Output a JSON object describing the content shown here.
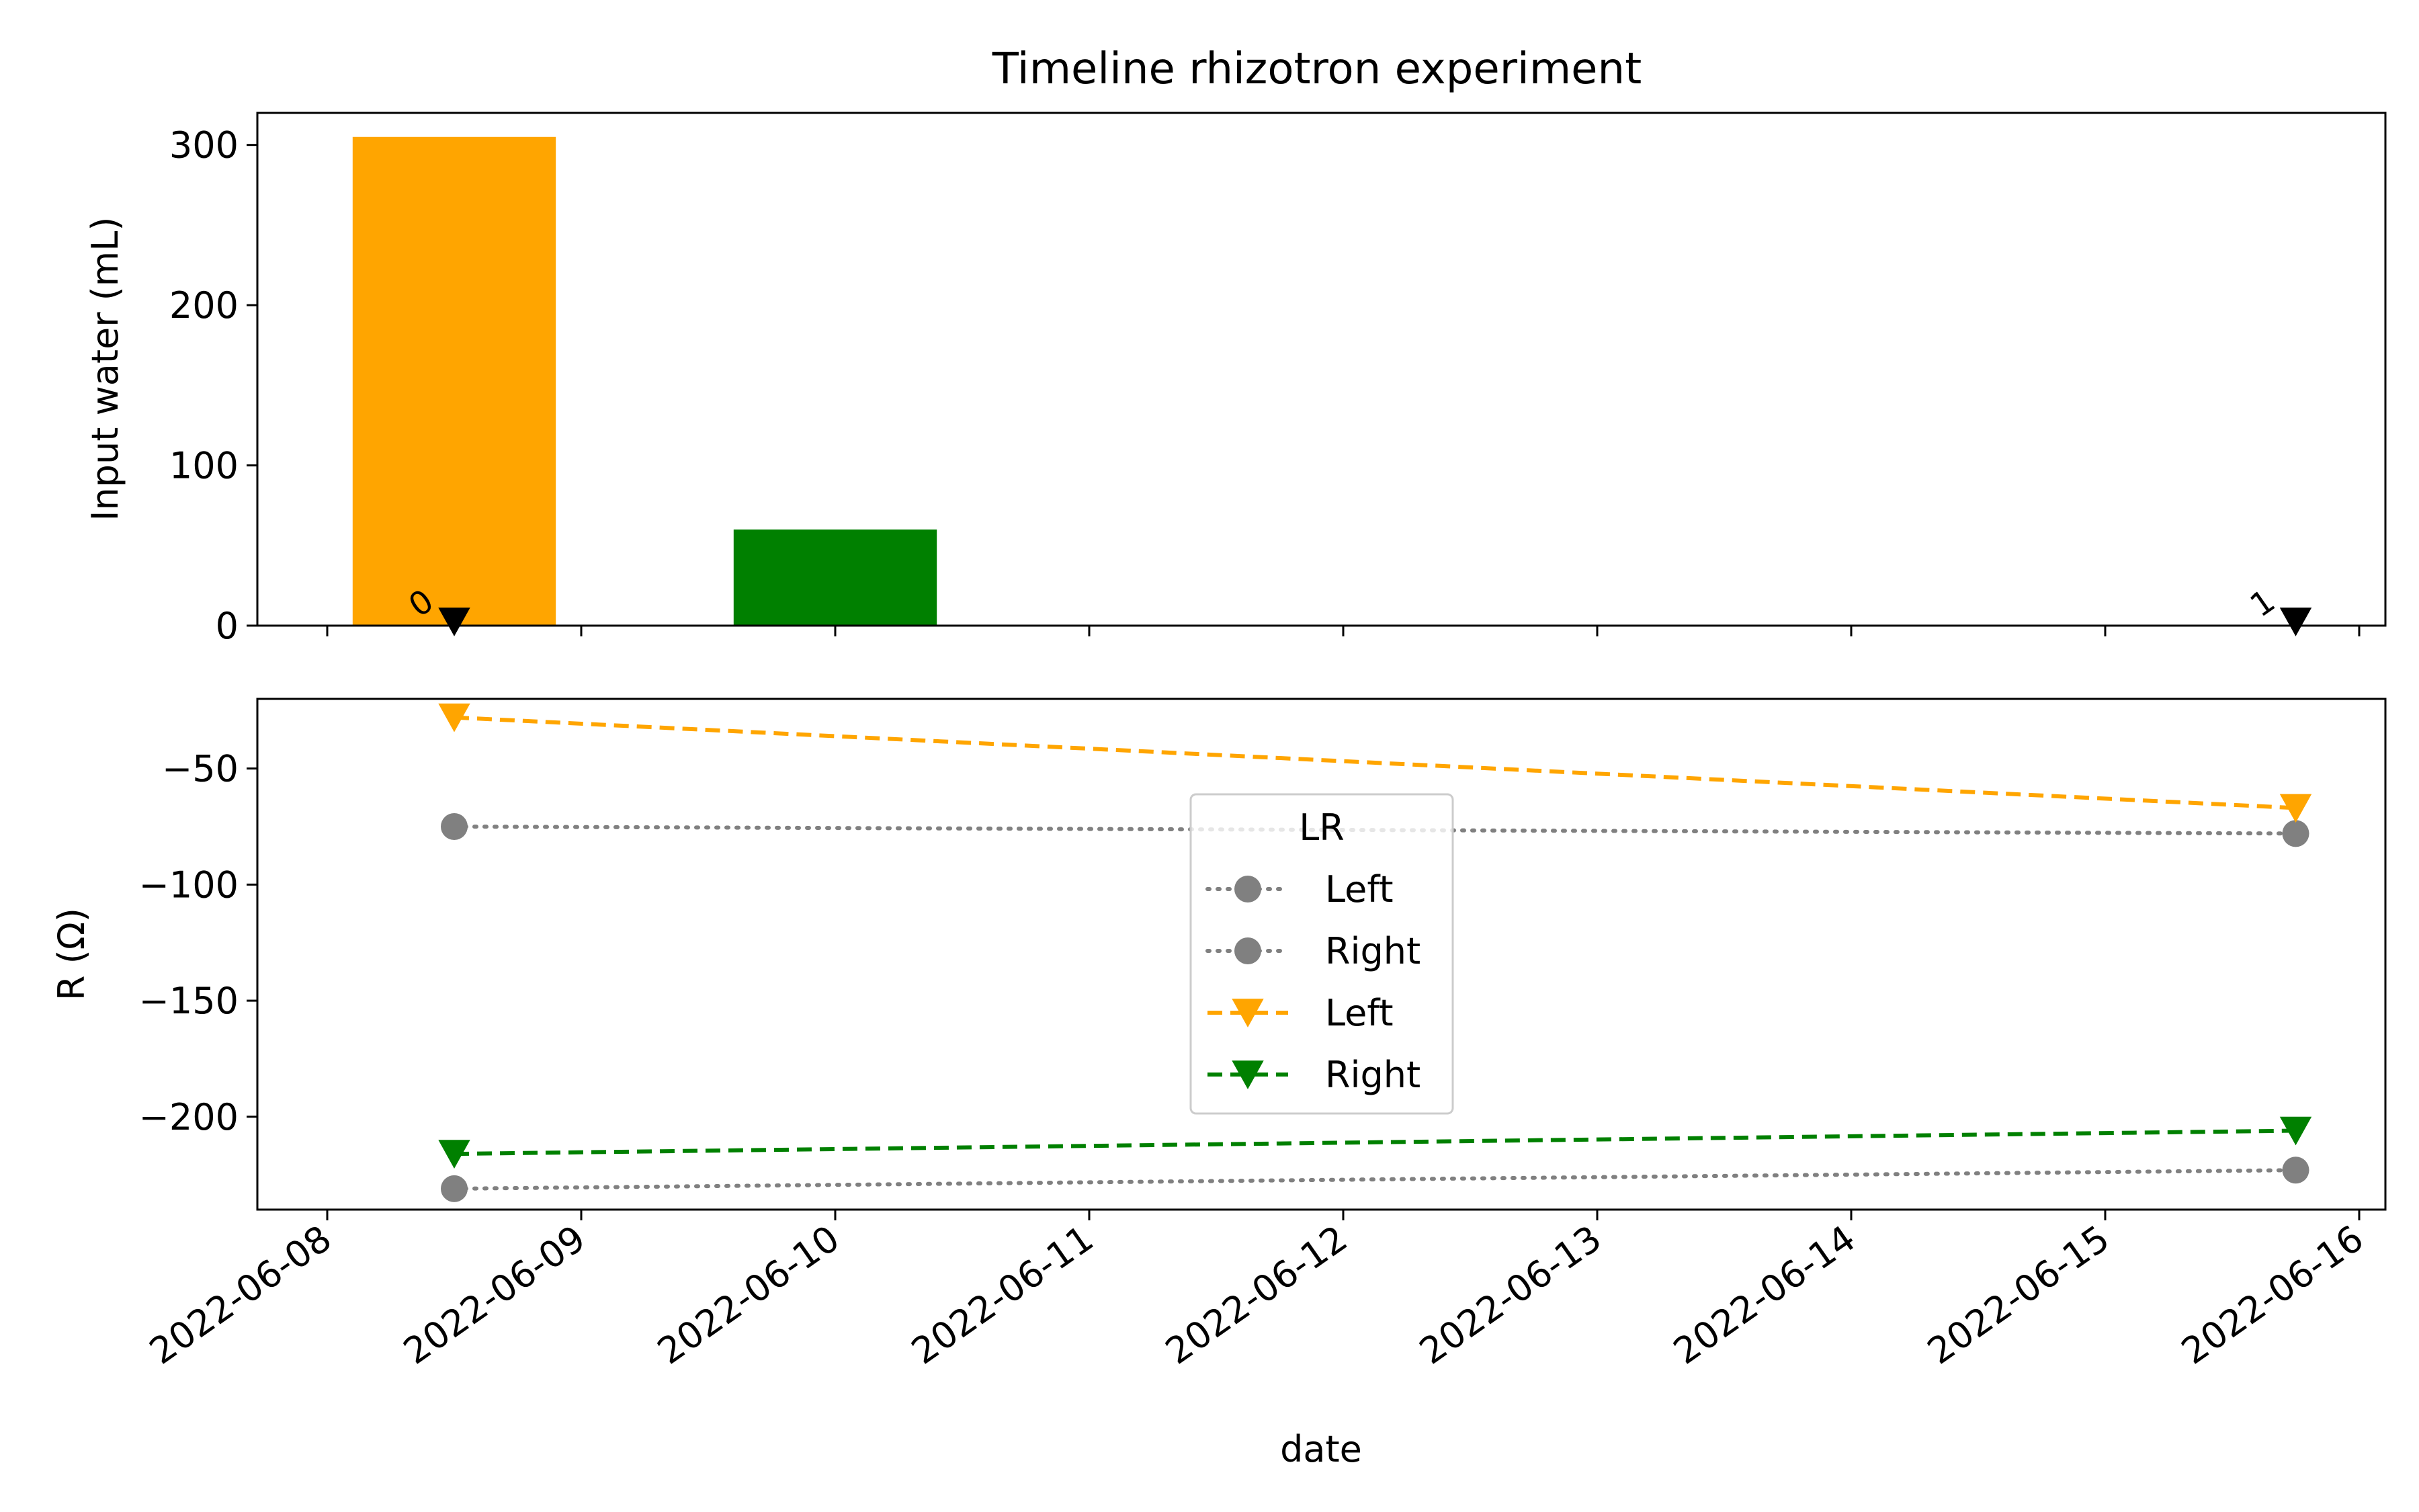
{
  "chart_data": [
    {
      "type": "bar",
      "title": "Timeline rhizotron experiment",
      "ylabel": "Input water (mL)",
      "xlabel": "",
      "xlim": [
        "2022-06-08",
        "2022-06-16"
      ],
      "ylim": [
        0,
        320
      ],
      "yticks": [
        0,
        100,
        200,
        300
      ],
      "grid": false,
      "series": [
        {
          "date": "2022-06-08T12:00",
          "value": 305,
          "color": "#FFA500"
        },
        {
          "date": "2022-06-10T00:00",
          "value": 60,
          "color": "#008000"
        }
      ],
      "annotations": [
        {
          "label": "0",
          "date": "2022-06-08T12:00",
          "y": 0,
          "marker": "triangle-down",
          "color": "#000000"
        },
        {
          "label": "1",
          "date": "2022-06-15T18:00",
          "y": 0,
          "marker": "triangle-down",
          "color": "#000000"
        }
      ]
    },
    {
      "type": "line",
      "xlabel": "date",
      "ylabel": "R (Ω)",
      "xlim": [
        "2022-06-08",
        "2022-06-16"
      ],
      "ylim": [
        -240,
        -20
      ],
      "yticks": [
        -50,
        -100,
        -150,
        -200
      ],
      "ytick_labels": [
        "−50",
        "−100",
        "−150",
        "−200"
      ],
      "xticks": [
        "2022-06-08",
        "2022-06-09",
        "2022-06-10",
        "2022-06-11",
        "2022-06-12",
        "2022-06-13",
        "2022-06-14",
        "2022-06-15",
        "2022-06-16"
      ],
      "grid": false,
      "legend": {
        "title": "LR",
        "placement": "center"
      },
      "series": [
        {
          "name": "Left",
          "style": "dotted",
          "marker": "circle",
          "color": "#808080",
          "x": [
            "2022-06-08T12:00",
            "2022-06-15T18:00"
          ],
          "y": [
            -75,
            -78
          ]
        },
        {
          "name": "Right",
          "style": "dotted",
          "marker": "circle",
          "color": "#808080",
          "x": [
            "2022-06-08T12:00",
            "2022-06-15T18:00"
          ],
          "y": [
            -231,
            -223
          ]
        },
        {
          "name": "Left",
          "style": "dashed",
          "marker": "triangle-down",
          "color": "#FFA500",
          "x": [
            "2022-06-08T12:00",
            "2022-06-15T18:00"
          ],
          "y": [
            -28,
            -67
          ]
        },
        {
          "name": "Right",
          "style": "dashed",
          "marker": "triangle-down",
          "color": "#008000",
          "x": [
            "2022-06-08T12:00",
            "2022-06-15T18:00"
          ],
          "y": [
            -216,
            -206
          ]
        }
      ]
    }
  ]
}
